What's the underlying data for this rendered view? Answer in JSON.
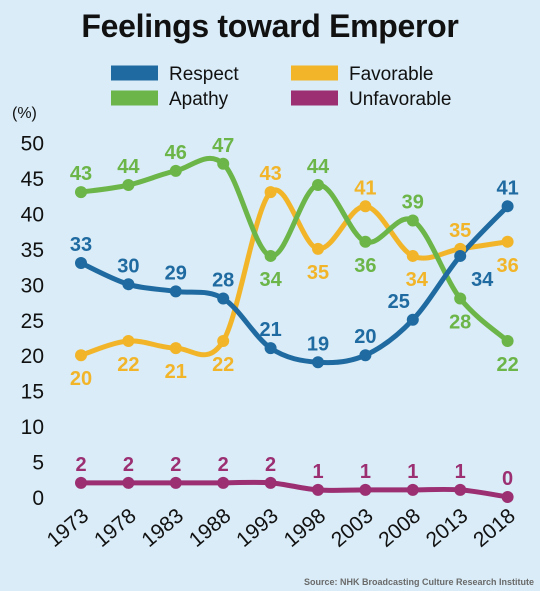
{
  "chart_data": {
    "type": "line",
    "title": "Feelings toward Emperor",
    "ylabel": "(%)",
    "xlabel": "",
    "x": [
      "1973",
      "1978",
      "1983",
      "1988",
      "1993",
      "1998",
      "2003",
      "2008",
      "2013",
      "2018"
    ],
    "ylim": [
      0,
      50
    ],
    "yticks": [
      "0",
      "5",
      "10",
      "15",
      "20",
      "25",
      "30",
      "35",
      "40",
      "45",
      "50"
    ],
    "grid": false,
    "legend_position": "top",
    "series": [
      {
        "name": "Respect",
        "color": "#1f6aa0",
        "values": [
          33,
          30,
          29,
          28,
          21,
          19,
          20,
          25,
          34,
          41
        ]
      },
      {
        "name": "Favorable",
        "color": "#f2b52a",
        "values": [
          20,
          22,
          21,
          22,
          43,
          35,
          41,
          34,
          35,
          36
        ]
      },
      {
        "name": "Apathy",
        "color": "#6cb548",
        "values": [
          43,
          44,
          46,
          47,
          34,
          44,
          36,
          39,
          28,
          22
        ]
      },
      {
        "name": "Unfavorable",
        "color": "#9b2f72",
        "values": [
          2,
          2,
          2,
          2,
          2,
          1,
          1,
          1,
          1,
          0
        ]
      }
    ],
    "source": "Source: NHK Broadcasting Culture Research Institute"
  }
}
